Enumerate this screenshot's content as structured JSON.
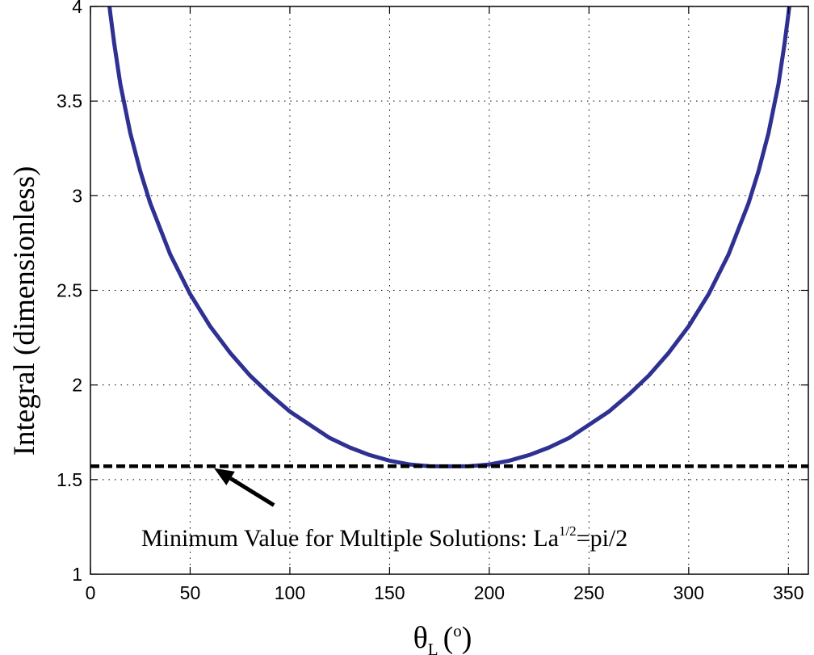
{
  "chart_data": {
    "type": "line",
    "title": "",
    "xlabel": {
      "symbol": "θ",
      "subscript": "L",
      "unit_open": "(",
      "unit_sup": "o",
      "unit_close": ")"
    },
    "ylabel": "Integral (dimensionless)",
    "xlim": [
      0,
      360
    ],
    "ylim": [
      1,
      4
    ],
    "xticks": [
      0,
      50,
      100,
      150,
      200,
      250,
      300,
      350
    ],
    "yticks": [
      1,
      1.5,
      2,
      2.5,
      3,
      3.5,
      4
    ],
    "xtick_labels": [
      "0",
      "50",
      "100",
      "150",
      "200",
      "250",
      "300",
      "350"
    ],
    "ytick_labels": [
      "1",
      "1.5",
      "2",
      "2.5",
      "3",
      "3.5",
      "4"
    ],
    "grid": true,
    "grid_style": "dotted",
    "series": [
      {
        "color": "#2e3192",
        "style": "solid",
        "x": [
          9,
          10,
          12,
          15,
          20,
          25,
          30,
          40,
          50,
          60,
          70,
          80,
          90,
          100,
          110,
          120,
          130,
          140,
          150,
          160,
          170,
          180,
          190,
          200,
          210,
          220,
          230,
          240,
          250,
          260,
          270,
          280,
          290,
          300,
          310,
          320,
          330,
          335,
          340,
          345,
          348,
          350,
          351
        ],
        "y": [
          4.05,
          3.96,
          3.8,
          3.59,
          3.33,
          3.13,
          2.96,
          2.69,
          2.48,
          2.31,
          2.17,
          2.05,
          1.95,
          1.86,
          1.79,
          1.72,
          1.67,
          1.63,
          1.6,
          1.58,
          1.571,
          1.57,
          1.571,
          1.58,
          1.6,
          1.63,
          1.67,
          1.72,
          1.79,
          1.86,
          1.95,
          2.05,
          2.17,
          2.31,
          2.48,
          2.69,
          2.96,
          3.13,
          3.33,
          3.59,
          3.8,
          3.96,
          4.05
        ]
      },
      {
        "color": "#000000",
        "style": "dashed",
        "x": [
          0,
          360
        ],
        "y": [
          1.5708,
          1.5708
        ]
      }
    ],
    "annotation": {
      "text_main": "Minimum Value for Multiple Solutions: La",
      "text_sup": "1/2",
      "text_tail": "=pi/2",
      "arrow_tip": [
        62,
        1.56
      ],
      "arrow_tail": [
        92,
        1.365
      ]
    }
  }
}
